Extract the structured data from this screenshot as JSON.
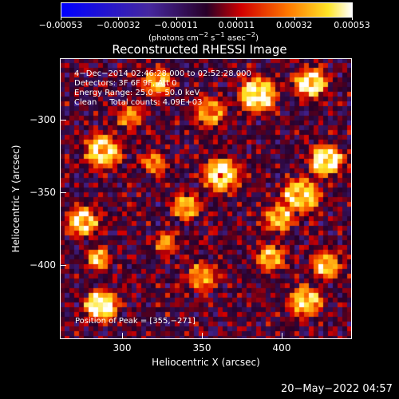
{
  "chart_data": {
    "type": "heatmap",
    "title": "Reconstructed RHESSI Image",
    "xlabel": "Heliocentric X (arcsec)",
    "ylabel": "Heliocentric Y (arcsec)",
    "xlim": [
      261,
      444
    ],
    "ylim": [
      -451,
      -258
    ],
    "xticks": [
      300,
      350,
      400
    ],
    "yticks": [
      -300,
      -350,
      -400
    ],
    "xtick_labels": [
      "300",
      "350",
      "400"
    ],
    "ytick_labels": [
      "−300",
      "−350",
      "−400"
    ],
    "colorbar": {
      "ticks": [
        -0.00053,
        -0.00032,
        -0.00011,
        0.00011,
        0.00032,
        0.00053
      ],
      "tick_labels": [
        "−0.00053",
        "−0.00032",
        "−0.00011",
        "0.00011",
        "0.00032",
        "0.00053"
      ],
      "units_html": "(photons cm<sup>−2</sup> s<sup>−1</sup> asec<sup>−2</sup>)",
      "range": [
        -0.00053,
        0.00053
      ]
    },
    "overlay_lines": [
      "4−Dec−2014 02:46:28.000 to 02:52:28.000",
      "Detectors: 3F 6F 9F, Att 0",
      "Energy Range: 25.0 − 50.0 keV",
      "Clean     Total counts: 4.09E+03"
    ],
    "peak_label": "Position of Peak = [355,−271]",
    "peak": [
      355,
      -271
    ],
    "sources": [
      {
        "x": 385,
        "y": -283,
        "r": 9,
        "a": 0.95
      },
      {
        "x": 322,
        "y": -275,
        "r": 7,
        "a": 0.7
      },
      {
        "x": 288,
        "y": -322,
        "r": 9,
        "a": 0.8
      },
      {
        "x": 305,
        "y": -298,
        "r": 6,
        "a": 0.6
      },
      {
        "x": 355,
        "y": -295,
        "r": 8,
        "a": 0.6
      },
      {
        "x": 362,
        "y": -338,
        "r": 9,
        "a": 0.85
      },
      {
        "x": 340,
        "y": -360,
        "r": 7,
        "a": 0.7
      },
      {
        "x": 428,
        "y": -328,
        "r": 8,
        "a": 0.95
      },
      {
        "x": 418,
        "y": -275,
        "r": 8,
        "a": 0.85
      },
      {
        "x": 412,
        "y": -352,
        "r": 9,
        "a": 0.8
      },
      {
        "x": 398,
        "y": -368,
        "r": 7,
        "a": 0.7
      },
      {
        "x": 393,
        "y": -395,
        "r": 7,
        "a": 0.65
      },
      {
        "x": 287,
        "y": -428,
        "r": 8,
        "a": 0.95
      },
      {
        "x": 275,
        "y": -370,
        "r": 8,
        "a": 0.8
      },
      {
        "x": 285,
        "y": -395,
        "r": 6,
        "a": 0.65
      },
      {
        "x": 350,
        "y": -408,
        "r": 7,
        "a": 0.6
      },
      {
        "x": 328,
        "y": -385,
        "r": 6,
        "a": 0.55
      },
      {
        "x": 415,
        "y": -425,
        "r": 8,
        "a": 0.75
      },
      {
        "x": 428,
        "y": -400,
        "r": 7,
        "a": 0.7
      },
      {
        "x": 320,
        "y": -330,
        "r": 6,
        "a": 0.55
      }
    ]
  },
  "footer": {
    "timestamp": "20−May−2022 04:57"
  }
}
